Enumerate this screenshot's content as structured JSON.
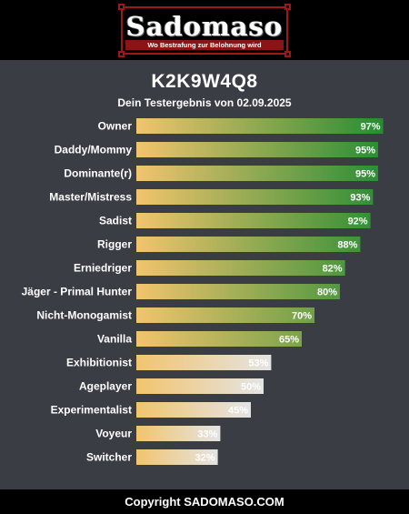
{
  "header": {
    "logo_title": "Sadomaso",
    "logo_tagline": "Wo Bestrafung zur Belohnung wird"
  },
  "result": {
    "code": "K2K9W4Q8",
    "subtitle": "Dein Testergebnis von 02.09.2025"
  },
  "chart_data": {
    "type": "bar",
    "orientation": "horizontal",
    "categories": [
      "Owner",
      "Daddy/Mommy",
      "Dominante(r)",
      "Master/Mistress",
      "Sadist",
      "Rigger",
      "Erniedriger",
      "Jäger - Primal Hunter",
      "Nicht-Monogamist",
      "Vanilla",
      "Exhibitionist",
      "Ageplayer",
      "Experimentalist",
      "Voyeur",
      "Switcher"
    ],
    "values": [
      97,
      95,
      95,
      93,
      92,
      88,
      82,
      80,
      70,
      65,
      53,
      50,
      45,
      33,
      32
    ],
    "value_labels": [
      "97%",
      "95%",
      "95%",
      "93%",
      "92%",
      "88%",
      "82%",
      "80%",
      "70%",
      "65%",
      "53%",
      "50%",
      "45%",
      "33%",
      "32%"
    ],
    "xlim": [
      0,
      100
    ],
    "grid": false,
    "colors": {
      "start": "#f2c46d",
      "high_end": "#1e8a32",
      "low_end": "#e4e4e4",
      "threshold": 60
    }
  },
  "footer": {
    "text": "Copyright SADOMASO.COM"
  },
  "colors": {
    "background": "#3a3d44",
    "header_background": "#000000",
    "logo_border": "#9a1a1a",
    "logo_banner": "#8b1414"
  }
}
